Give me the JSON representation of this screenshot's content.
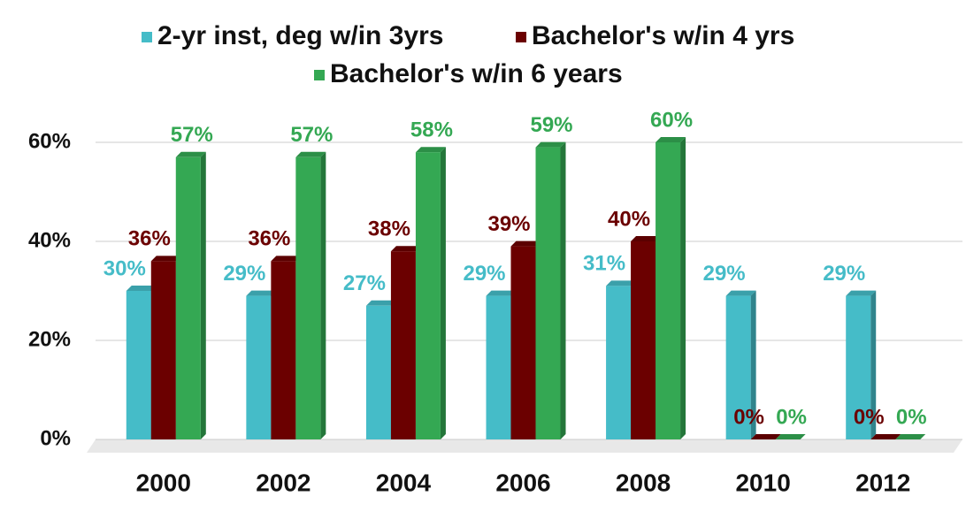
{
  "chart_data": {
    "type": "bar3d",
    "categories": [
      "2000",
      "2002",
      "2004",
      "2006",
      "2008",
      "2010",
      "2012"
    ],
    "series": [
      {
        "name": "2-yr inst, deg w/in 3yrs",
        "color": "#45bcc8",
        "values": [
          30,
          29,
          27,
          29,
          31,
          29,
          29
        ],
        "value_labels": [
          "30%",
          "29%",
          "27%",
          "29%",
          "31%",
          "29%",
          "29%"
        ]
      },
      {
        "name": "Bachelor's w/in 4 yrs",
        "color": "#6b0000",
        "values": [
          36,
          36,
          38,
          39,
          40,
          0,
          0
        ],
        "value_labels": [
          "36%",
          "36%",
          "38%",
          "39%",
          "40%",
          "0%",
          "0%"
        ]
      },
      {
        "name": "Bachelor's w/in 6 years",
        "color": "#34a853",
        "values": [
          57,
          57,
          58,
          59,
          60,
          0,
          0
        ],
        "value_labels": [
          "57%",
          "57%",
          "58%",
          "59%",
          "60%",
          "0%",
          "0%"
        ]
      }
    ],
    "ylim": [
      0,
      60
    ],
    "yticks": [
      {
        "value": 0,
        "label": "0%"
      },
      {
        "value": 20,
        "label": "20%"
      },
      {
        "value": 40,
        "label": "40%"
      },
      {
        "value": 60,
        "label": "60%"
      }
    ],
    "grid": true,
    "legend": "top"
  }
}
